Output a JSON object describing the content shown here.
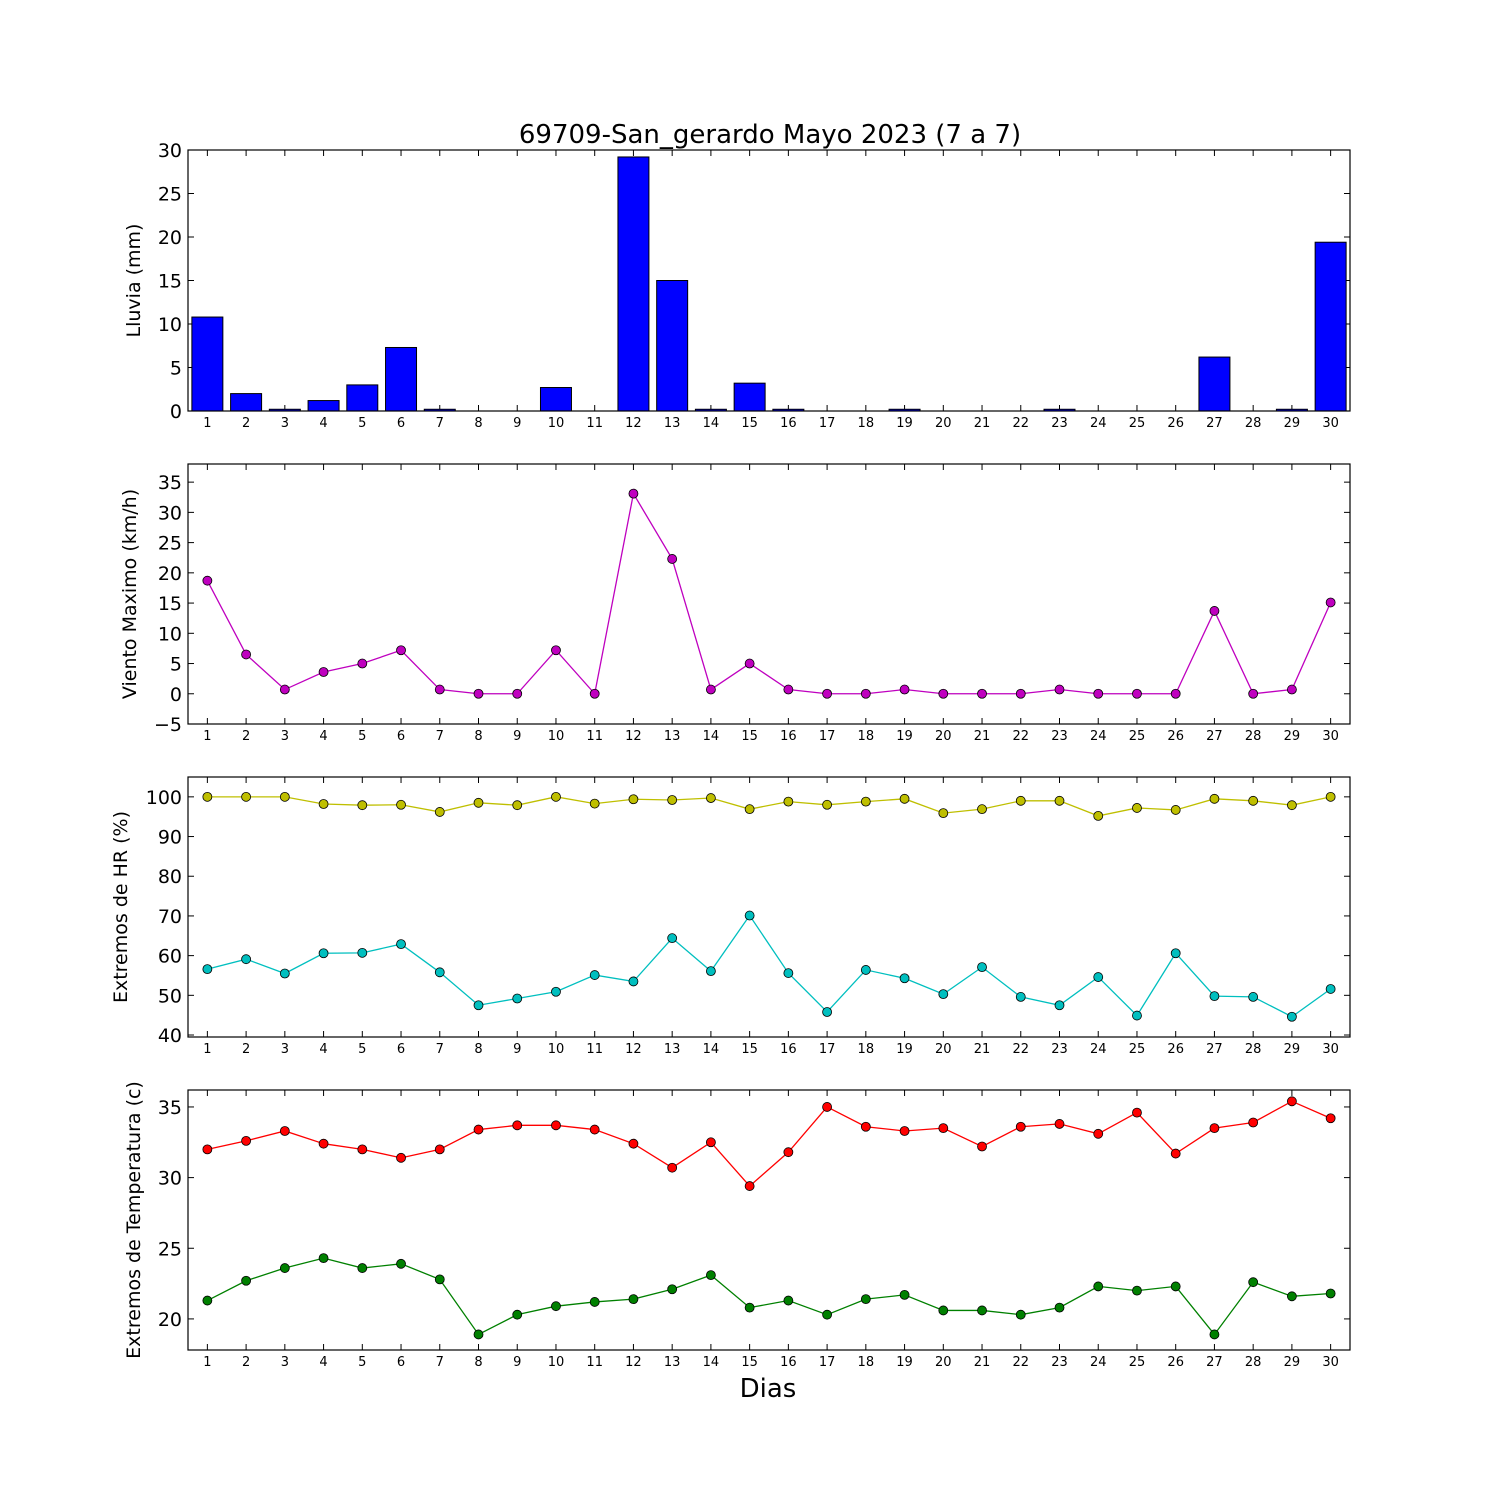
{
  "title": "69709-San_gerardo Mayo 2023  (7 a 7)",
  "xlabel": "Dias",
  "colors": {
    "rain": "#0000ff",
    "wind": "#bf00bf",
    "hr_max": "#bfbf00",
    "hr_min": "#00bfbf",
    "temp_max": "#ff0000",
    "temp_min": "#008000"
  },
  "chart_data": [
    {
      "type": "bar",
      "ylabel": "Lluvia (mm)",
      "ylim": [
        0,
        30
      ],
      "yticks": [
        0,
        5,
        10,
        15,
        20,
        25,
        30
      ],
      "categories": [
        "1",
        "2",
        "3",
        "4",
        "5",
        "6",
        "7",
        "8",
        "9",
        "10",
        "11",
        "12",
        "13",
        "14",
        "15",
        "16",
        "17",
        "18",
        "19",
        "20",
        "21",
        "22",
        "23",
        "24",
        "25",
        "26",
        "27",
        "28",
        "29",
        "30"
      ],
      "values": [
        10.8,
        2.0,
        0.2,
        1.2,
        3.0,
        7.3,
        0.2,
        0,
        0,
        2.7,
        0,
        29.2,
        15.0,
        0.2,
        3.2,
        0.2,
        0,
        0,
        0.2,
        0,
        0,
        0,
        0.2,
        0,
        0,
        0,
        6.2,
        0,
        0.2,
        19.4
      ]
    },
    {
      "type": "line",
      "ylabel": "Viento Maximo (km/h)",
      "ylim": [
        -5,
        38
      ],
      "yticks": [
        -5,
        0,
        5,
        10,
        15,
        20,
        25,
        30,
        35
      ],
      "categories": [
        "1",
        "2",
        "3",
        "4",
        "5",
        "6",
        "7",
        "8",
        "9",
        "10",
        "11",
        "12",
        "13",
        "14",
        "15",
        "16",
        "17",
        "18",
        "19",
        "20",
        "21",
        "22",
        "23",
        "24",
        "25",
        "26",
        "27",
        "28",
        "29",
        "30"
      ],
      "series": [
        {
          "values": [
            18.7,
            6.5,
            0.7,
            3.6,
            5.0,
            7.2,
            0.7,
            0,
            0,
            7.2,
            0,
            33.1,
            22.3,
            0.7,
            5.0,
            0.7,
            0,
            0,
            0.7,
            0,
            0,
            0,
            0.7,
            0,
            0,
            0,
            13.7,
            0,
            0.7,
            15.1
          ]
        }
      ]
    },
    {
      "type": "line",
      "ylabel": "Extremos de HR (%)",
      "ylim": [
        39.5,
        105
      ],
      "yticks": [
        40,
        50,
        60,
        70,
        80,
        90,
        100
      ],
      "categories": [
        "1",
        "2",
        "3",
        "4",
        "5",
        "6",
        "7",
        "8",
        "9",
        "10",
        "11",
        "12",
        "13",
        "14",
        "15",
        "16",
        "17",
        "18",
        "19",
        "20",
        "21",
        "22",
        "23",
        "24",
        "25",
        "26",
        "27",
        "28",
        "29",
        "30"
      ],
      "series": [
        {
          "values": [
            100,
            100,
            100,
            98.2,
            97.9,
            98.0,
            96.2,
            98.5,
            97.9,
            100,
            98.3,
            99.4,
            99.2,
            99.7,
            96.9,
            98.8,
            98.0,
            98.8,
            99.5,
            95.9,
            96.9,
            99.0,
            99.0,
            95.2,
            97.2,
            96.7,
            99.5,
            99.0,
            97.9,
            100
          ]
        },
        {
          "values": [
            56.6,
            59.1,
            55.5,
            60.6,
            60.7,
            62.9,
            55.8,
            47.5,
            49.2,
            50.9,
            55.1,
            53.5,
            64.4,
            56.1,
            70.1,
            55.6,
            45.8,
            56.4,
            54.3,
            50.3,
            57.1,
            49.6,
            47.5,
            54.6,
            44.9,
            60.6,
            49.8,
            49.6,
            44.6,
            51.6
          ]
        }
      ]
    },
    {
      "type": "line",
      "ylabel": "Extremos de Temperatura (c)",
      "ylim": [
        17.8,
        36.2
      ],
      "yticks": [
        20,
        25,
        30,
        35
      ],
      "categories": [
        "1",
        "2",
        "3",
        "4",
        "5",
        "6",
        "7",
        "8",
        "9",
        "10",
        "11",
        "12",
        "13",
        "14",
        "15",
        "16",
        "17",
        "18",
        "19",
        "20",
        "21",
        "22",
        "23",
        "24",
        "25",
        "26",
        "27",
        "28",
        "29",
        "30"
      ],
      "series": [
        {
          "values": [
            32.0,
            32.6,
            33.3,
            32.4,
            32.0,
            31.4,
            32.0,
            33.4,
            33.7,
            33.7,
            33.4,
            32.4,
            30.7,
            32.5,
            29.4,
            31.8,
            35.0,
            33.6,
            33.3,
            33.5,
            32.2,
            33.6,
            33.8,
            33.1,
            34.6,
            31.7,
            33.5,
            33.9,
            35.4,
            34.2
          ]
        },
        {
          "values": [
            21.3,
            22.7,
            23.6,
            24.3,
            23.6,
            23.9,
            22.8,
            18.9,
            20.3,
            20.9,
            21.2,
            21.4,
            22.1,
            23.1,
            20.8,
            21.3,
            20.3,
            21.4,
            21.7,
            20.6,
            20.6,
            20.3,
            20.8,
            22.3,
            22.0,
            22.3,
            18.9,
            22.6,
            21.6,
            21.8
          ]
        }
      ]
    }
  ]
}
